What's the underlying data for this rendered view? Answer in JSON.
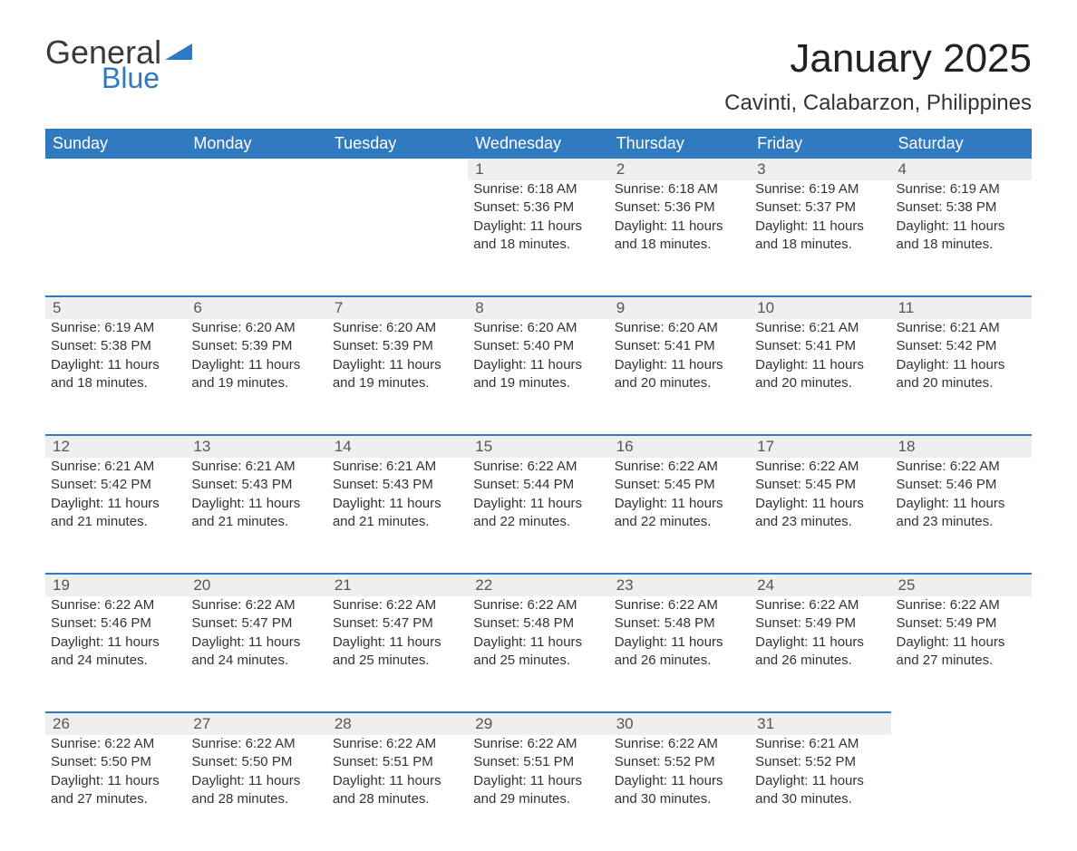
{
  "logo": {
    "general": "General",
    "blue": "Blue",
    "flag_color": "#2f79c2"
  },
  "header": {
    "month_title": "January 2025",
    "location": "Cavinti, Calabarzon, Philippines"
  },
  "style": {
    "header_bg": "#307ac0",
    "header_fg": "#ffffff",
    "daynum_bg": "#efefef",
    "row_divider": "#307ac0",
    "text_color": "#333333",
    "title_fontsize": 44,
    "location_fontsize": 24,
    "th_fontsize": 18,
    "cell_fontsize": 15
  },
  "weekdays": [
    "Sunday",
    "Monday",
    "Tuesday",
    "Wednesday",
    "Thursday",
    "Friday",
    "Saturday"
  ],
  "weeks": [
    [
      null,
      null,
      null,
      {
        "n": "1",
        "sr": "Sunrise: 6:18 AM",
        "ss": "Sunset: 5:36 PM",
        "d1": "Daylight: 11 hours",
        "d2": "and 18 minutes."
      },
      {
        "n": "2",
        "sr": "Sunrise: 6:18 AM",
        "ss": "Sunset: 5:36 PM",
        "d1": "Daylight: 11 hours",
        "d2": "and 18 minutes."
      },
      {
        "n": "3",
        "sr": "Sunrise: 6:19 AM",
        "ss": "Sunset: 5:37 PM",
        "d1": "Daylight: 11 hours",
        "d2": "and 18 minutes."
      },
      {
        "n": "4",
        "sr": "Sunrise: 6:19 AM",
        "ss": "Sunset: 5:38 PM",
        "d1": "Daylight: 11 hours",
        "d2": "and 18 minutes."
      }
    ],
    [
      {
        "n": "5",
        "sr": "Sunrise: 6:19 AM",
        "ss": "Sunset: 5:38 PM",
        "d1": "Daylight: 11 hours",
        "d2": "and 18 minutes."
      },
      {
        "n": "6",
        "sr": "Sunrise: 6:20 AM",
        "ss": "Sunset: 5:39 PM",
        "d1": "Daylight: 11 hours",
        "d2": "and 19 minutes."
      },
      {
        "n": "7",
        "sr": "Sunrise: 6:20 AM",
        "ss": "Sunset: 5:39 PM",
        "d1": "Daylight: 11 hours",
        "d2": "and 19 minutes."
      },
      {
        "n": "8",
        "sr": "Sunrise: 6:20 AM",
        "ss": "Sunset: 5:40 PM",
        "d1": "Daylight: 11 hours",
        "d2": "and 19 minutes."
      },
      {
        "n": "9",
        "sr": "Sunrise: 6:20 AM",
        "ss": "Sunset: 5:41 PM",
        "d1": "Daylight: 11 hours",
        "d2": "and 20 minutes."
      },
      {
        "n": "10",
        "sr": "Sunrise: 6:21 AM",
        "ss": "Sunset: 5:41 PM",
        "d1": "Daylight: 11 hours",
        "d2": "and 20 minutes."
      },
      {
        "n": "11",
        "sr": "Sunrise: 6:21 AM",
        "ss": "Sunset: 5:42 PM",
        "d1": "Daylight: 11 hours",
        "d2": "and 20 minutes."
      }
    ],
    [
      {
        "n": "12",
        "sr": "Sunrise: 6:21 AM",
        "ss": "Sunset: 5:42 PM",
        "d1": "Daylight: 11 hours",
        "d2": "and 21 minutes."
      },
      {
        "n": "13",
        "sr": "Sunrise: 6:21 AM",
        "ss": "Sunset: 5:43 PM",
        "d1": "Daylight: 11 hours",
        "d2": "and 21 minutes."
      },
      {
        "n": "14",
        "sr": "Sunrise: 6:21 AM",
        "ss": "Sunset: 5:43 PM",
        "d1": "Daylight: 11 hours",
        "d2": "and 21 minutes."
      },
      {
        "n": "15",
        "sr": "Sunrise: 6:22 AM",
        "ss": "Sunset: 5:44 PM",
        "d1": "Daylight: 11 hours",
        "d2": "and 22 minutes."
      },
      {
        "n": "16",
        "sr": "Sunrise: 6:22 AM",
        "ss": "Sunset: 5:45 PM",
        "d1": "Daylight: 11 hours",
        "d2": "and 22 minutes."
      },
      {
        "n": "17",
        "sr": "Sunrise: 6:22 AM",
        "ss": "Sunset: 5:45 PM",
        "d1": "Daylight: 11 hours",
        "d2": "and 23 minutes."
      },
      {
        "n": "18",
        "sr": "Sunrise: 6:22 AM",
        "ss": "Sunset: 5:46 PM",
        "d1": "Daylight: 11 hours",
        "d2": "and 23 minutes."
      }
    ],
    [
      {
        "n": "19",
        "sr": "Sunrise: 6:22 AM",
        "ss": "Sunset: 5:46 PM",
        "d1": "Daylight: 11 hours",
        "d2": "and 24 minutes."
      },
      {
        "n": "20",
        "sr": "Sunrise: 6:22 AM",
        "ss": "Sunset: 5:47 PM",
        "d1": "Daylight: 11 hours",
        "d2": "and 24 minutes."
      },
      {
        "n": "21",
        "sr": "Sunrise: 6:22 AM",
        "ss": "Sunset: 5:47 PM",
        "d1": "Daylight: 11 hours",
        "d2": "and 25 minutes."
      },
      {
        "n": "22",
        "sr": "Sunrise: 6:22 AM",
        "ss": "Sunset: 5:48 PM",
        "d1": "Daylight: 11 hours",
        "d2": "and 25 minutes."
      },
      {
        "n": "23",
        "sr": "Sunrise: 6:22 AM",
        "ss": "Sunset: 5:48 PM",
        "d1": "Daylight: 11 hours",
        "d2": "and 26 minutes."
      },
      {
        "n": "24",
        "sr": "Sunrise: 6:22 AM",
        "ss": "Sunset: 5:49 PM",
        "d1": "Daylight: 11 hours",
        "d2": "and 26 minutes."
      },
      {
        "n": "25",
        "sr": "Sunrise: 6:22 AM",
        "ss": "Sunset: 5:49 PM",
        "d1": "Daylight: 11 hours",
        "d2": "and 27 minutes."
      }
    ],
    [
      {
        "n": "26",
        "sr": "Sunrise: 6:22 AM",
        "ss": "Sunset: 5:50 PM",
        "d1": "Daylight: 11 hours",
        "d2": "and 27 minutes."
      },
      {
        "n": "27",
        "sr": "Sunrise: 6:22 AM",
        "ss": "Sunset: 5:50 PM",
        "d1": "Daylight: 11 hours",
        "d2": "and 28 minutes."
      },
      {
        "n": "28",
        "sr": "Sunrise: 6:22 AM",
        "ss": "Sunset: 5:51 PM",
        "d1": "Daylight: 11 hours",
        "d2": "and 28 minutes."
      },
      {
        "n": "29",
        "sr": "Sunrise: 6:22 AM",
        "ss": "Sunset: 5:51 PM",
        "d1": "Daylight: 11 hours",
        "d2": "and 29 minutes."
      },
      {
        "n": "30",
        "sr": "Sunrise: 6:22 AM",
        "ss": "Sunset: 5:52 PM",
        "d1": "Daylight: 11 hours",
        "d2": "and 30 minutes."
      },
      {
        "n": "31",
        "sr": "Sunrise: 6:21 AM",
        "ss": "Sunset: 5:52 PM",
        "d1": "Daylight: 11 hours",
        "d2": "and 30 minutes."
      },
      null
    ]
  ]
}
